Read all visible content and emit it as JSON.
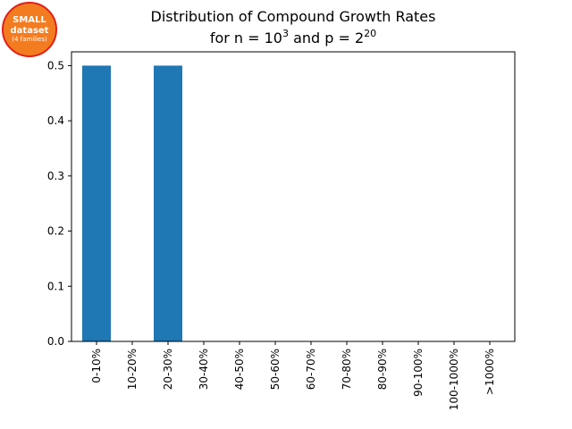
{
  "badge": {
    "line1": "SMALL",
    "line2": "dataset",
    "line3": "(4 families)",
    "fill_color": "#f47c20",
    "border_color": "#e0201a"
  },
  "chart_data": {
    "type": "bar",
    "title_line1": "Distribution of Compound Growth Rates",
    "title_line2_parts": [
      "for n = 10",
      "3",
      " and p = 2",
      "20"
    ],
    "categories": [
      "0-10%",
      "10-20%",
      "20-30%",
      "30-40%",
      "40-50%",
      "50-60%",
      "60-70%",
      "70-80%",
      "80-90%",
      "90-100%",
      "100-1000%",
      ">1000%"
    ],
    "values": [
      0.5,
      0,
      0.5,
      0,
      0,
      0,
      0,
      0,
      0,
      0,
      0,
      0
    ],
    "yticks": [
      "0.0",
      "0.1",
      "0.2",
      "0.3",
      "0.4",
      "0.5"
    ],
    "ylim": [
      0,
      0.525
    ],
    "bar_color": "#1f77b4",
    "grid": false,
    "legend": "none"
  }
}
